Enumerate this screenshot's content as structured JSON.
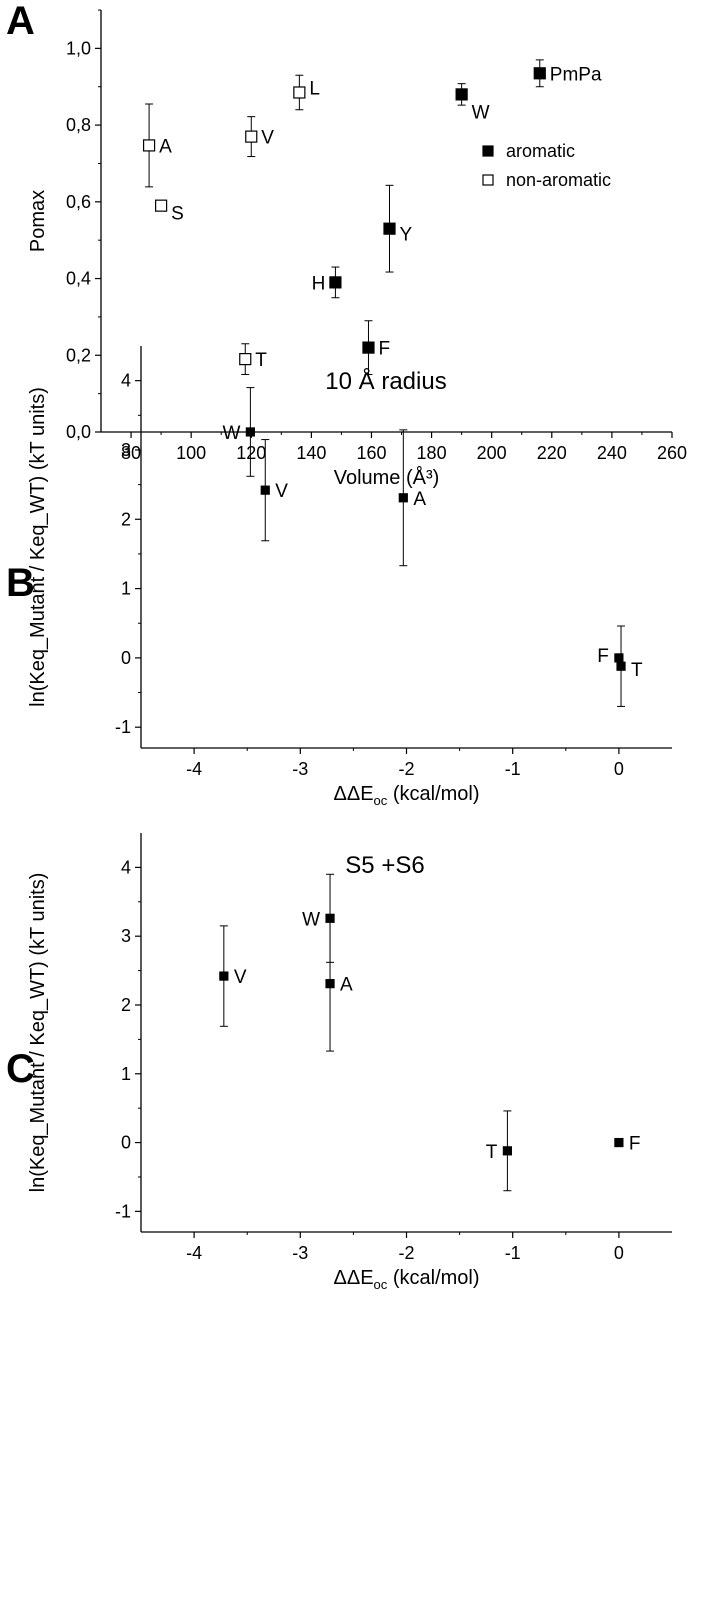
{
  "chart_data": [
    {
      "panel": "A",
      "type": "scatter",
      "title": "",
      "xlabel": "Volume (Å³)",
      "ylabel": "Pomax",
      "xlim": [
        70,
        260
      ],
      "ylim": [
        0.0,
        1.1
      ],
      "xticks": [
        "80",
        "100",
        "120",
        "140",
        "160",
        "180",
        "200",
        "220",
        "240",
        "260"
      ],
      "xtick_values": [
        80,
        100,
        120,
        140,
        160,
        180,
        200,
        220,
        240,
        260
      ],
      "yticks": [
        "0,0",
        "0,2",
        "0,4",
        "0,6",
        "0,8",
        "1,0"
      ],
      "ytick_values": [
        0.0,
        0.2,
        0.4,
        0.6,
        0.8,
        1.0
      ],
      "legend": [
        {
          "label": "aromatic",
          "marker": "filled"
        },
        {
          "label": "non-aromatic",
          "marker": "open"
        }
      ],
      "legend_position": "right",
      "points": [
        {
          "label": "A",
          "x": 86,
          "y": 0.747,
          "err": 0.108,
          "marker": "open",
          "label_side": "right"
        },
        {
          "label": "S",
          "x": 90,
          "y": 0.59,
          "err": 0,
          "marker": "open",
          "label_side": "right"
        },
        {
          "label": "V",
          "x": 120,
          "y": 0.77,
          "err": 0.052,
          "marker": "open",
          "label_side": "right"
        },
        {
          "label": "L",
          "x": 136,
          "y": 0.885,
          "err": 0.045,
          "marker": "open",
          "label_side": "right"
        },
        {
          "label": "T",
          "x": 118,
          "y": 0.19,
          "err": 0.04,
          "marker": "open",
          "label_side": "right"
        },
        {
          "label": "H",
          "x": 148,
          "y": 0.39,
          "err": 0.04,
          "marker": "filled",
          "label_side": "left"
        },
        {
          "label": "F",
          "x": 159,
          "y": 0.22,
          "err": 0.07,
          "marker": "filled",
          "label_side": "right"
        },
        {
          "label": "Y",
          "x": 166,
          "y": 0.53,
          "err": 0.113,
          "marker": "filled",
          "label_side": "right"
        },
        {
          "label": "W",
          "x": 190,
          "y": 0.88,
          "err": 0.028,
          "marker": "filled",
          "label_side": "right"
        },
        {
          "label": "PmPa",
          "x": 216,
          "y": 0.935,
          "err": 0.035,
          "marker": "filled",
          "label_side": "right"
        }
      ]
    },
    {
      "panel": "B",
      "type": "scatter",
      "title": "10 Å radius",
      "xlabel": "ΔΔE",
      "xlabel_sub": "oc",
      "xlabel_tail": " (kcal/mol)",
      "ylabel": "ln(Keq_Mutant / Keq_WT) (kT units)",
      "xlim": [
        -4.5,
        0.5
      ],
      "ylim": [
        -1.3,
        4.5
      ],
      "xticks": [
        "-4",
        "-3",
        "-2",
        "-1",
        "0"
      ],
      "xtick_values": [
        -4,
        -3,
        -2,
        -1,
        0
      ],
      "yticks": [
        "-1",
        "0",
        "1",
        "2",
        "3",
        "4"
      ],
      "ytick_values": [
        -1,
        0,
        1,
        2,
        3,
        4
      ],
      "points": [
        {
          "label": "W",
          "x": -3.47,
          "y": 3.26,
          "err": 0.64,
          "label_side": "left"
        },
        {
          "label": "V",
          "x": -3.33,
          "y": 2.42,
          "err": 0.73,
          "label_side": "right"
        },
        {
          "label": "A",
          "x": -2.03,
          "y": 2.31,
          "err": 0.98,
          "label_side": "right"
        },
        {
          "label": "F",
          "x": 0.0,
          "y": 0.0,
          "err": 0,
          "label_side": "left"
        },
        {
          "label": "T",
          "x": 0.02,
          "y": -0.12,
          "err": 0.58,
          "label_side": "right"
        }
      ]
    },
    {
      "panel": "C",
      "type": "scatter",
      "title": "S5 +S6",
      "xlabel": "ΔΔE",
      "xlabel_sub": "oc",
      "xlabel_tail": " (kcal/mol)",
      "ylabel": "ln(Keq_Mutant / Keq_WT) (kT units)",
      "xlim": [
        -4.5,
        0.5
      ],
      "ylim": [
        -1.3,
        4.5
      ],
      "xticks": [
        "-4",
        "-3",
        "-2",
        "-1",
        "0"
      ],
      "xtick_values": [
        -4,
        -3,
        -2,
        -1,
        0
      ],
      "yticks": [
        "-1",
        "0",
        "1",
        "2",
        "3",
        "4"
      ],
      "ytick_values": [
        -1,
        0,
        1,
        2,
        3,
        4
      ],
      "points": [
        {
          "label": "V",
          "x": -3.72,
          "y": 2.42,
          "err": 0.73,
          "label_side": "right"
        },
        {
          "label": "W",
          "x": -2.72,
          "y": 3.26,
          "err": 0.64,
          "label_side": "left"
        },
        {
          "label": "A",
          "x": -2.72,
          "y": 2.31,
          "err": 0.98,
          "label_side": "right"
        },
        {
          "label": "T",
          "x": -1.05,
          "y": -0.12,
          "err": 0.58,
          "label_side": "left"
        },
        {
          "label": "F",
          "x": 0.0,
          "y": 0.0,
          "err": 0,
          "label_side": "right"
        }
      ]
    }
  ]
}
